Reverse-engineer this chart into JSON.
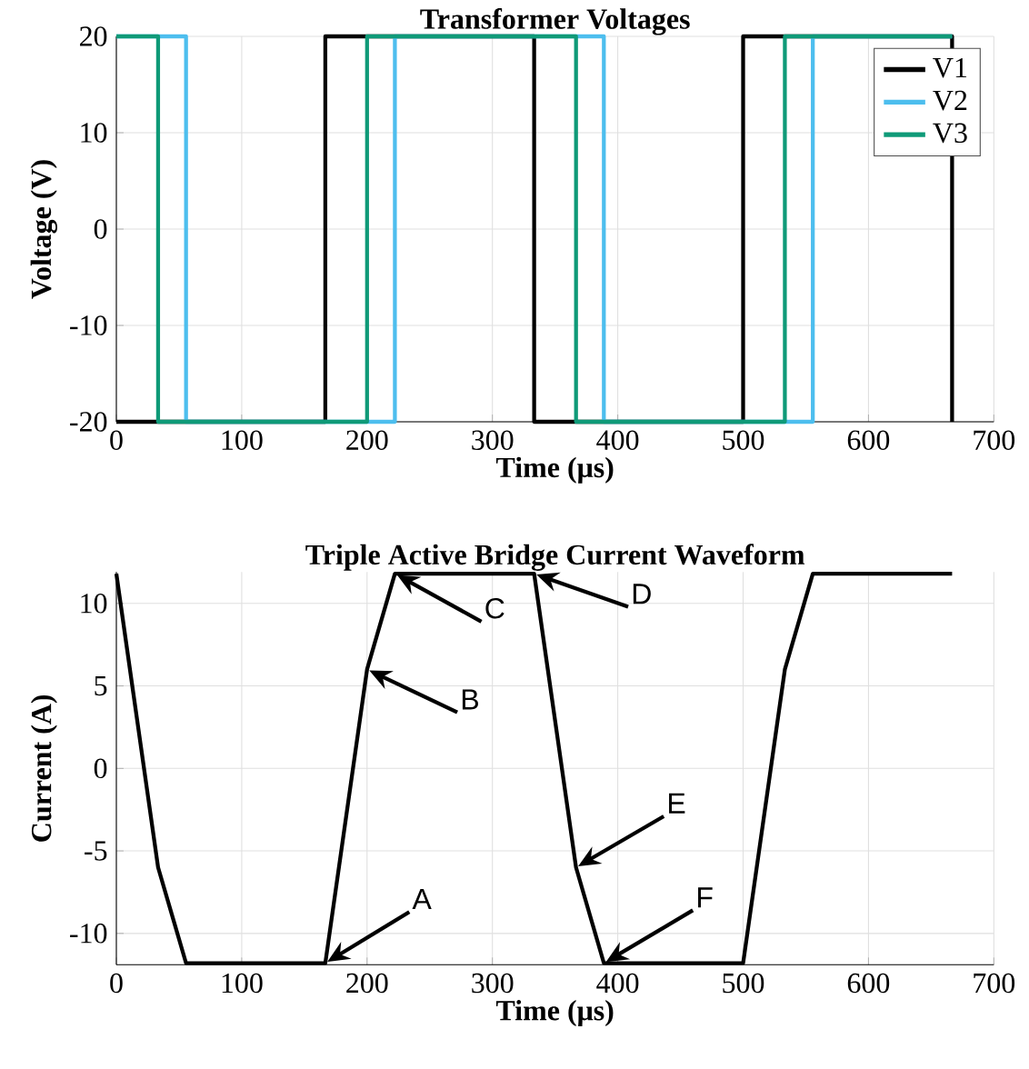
{
  "chart_data": [
    {
      "type": "step",
      "title": "Transformer Voltages",
      "xlabel": "Time (μs)",
      "ylabel": "Voltage (V)",
      "xlim": [
        0,
        700
      ],
      "ylim": [
        -20,
        20
      ],
      "xticks": [
        0,
        100,
        200,
        300,
        400,
        500,
        600,
        700
      ],
      "yticks": [
        -20,
        -10,
        0,
        10,
        20
      ],
      "grid": true,
      "legend": "top right",
      "series": [
        {
          "name": "V1",
          "color": "#000000",
          "x": [
            0,
            166.7,
            333.3,
            500,
            666.7
          ],
          "values": [
            -20,
            20,
            -20,
            20,
            -20
          ]
        },
        {
          "name": "V2",
          "color": "#4dbeee",
          "x": [
            0,
            55.6,
            222.2,
            388.9,
            555.6,
            666.7
          ],
          "values": [
            20,
            -20,
            20,
            -20,
            20,
            20
          ]
        },
        {
          "name": "V3",
          "color": "#0f9a78",
          "x": [
            0,
            33.3,
            200,
            366.7,
            533.3,
            666.7
          ],
          "values": [
            20,
            -20,
            20,
            -20,
            20,
            20
          ]
        }
      ]
    },
    {
      "type": "line",
      "title": "Triple Active Bridge Current Waveform",
      "xlabel": "Time (μs)",
      "ylabel": "Current (A)",
      "xlim": [
        0,
        700
      ],
      "ylim": [
        -11.9,
        11.9
      ],
      "xticks": [
        0,
        100,
        200,
        300,
        400,
        500,
        600,
        700
      ],
      "yticks": [
        -10,
        -5,
        0,
        5,
        10
      ],
      "grid": true,
      "series": [
        {
          "color": "#000000",
          "x": [
            0,
            33.3,
            55.6,
            166.7,
            200,
            222.2,
            333.3,
            366.7,
            388.9,
            500,
            533.3,
            555.6,
            666.7
          ],
          "values": [
            11.8,
            -6,
            -11.8,
            -11.8,
            6,
            11.8,
            11.8,
            -6,
            -11.8,
            -11.8,
            6,
            11.8,
            11.8
          ]
        }
      ],
      "annotations": [
        {
          "text": "A",
          "x": 166.7,
          "y": -11.8
        },
        {
          "text": "B",
          "x": 200,
          "y": 6
        },
        {
          "text": "C",
          "x": 222.2,
          "y": 11.8
        },
        {
          "text": "D",
          "x": 333.3,
          "y": 11.8
        },
        {
          "text": "E",
          "x": 366.7,
          "y": -6
        },
        {
          "text": "F",
          "x": 388.9,
          "y": -11.8
        }
      ]
    }
  ]
}
